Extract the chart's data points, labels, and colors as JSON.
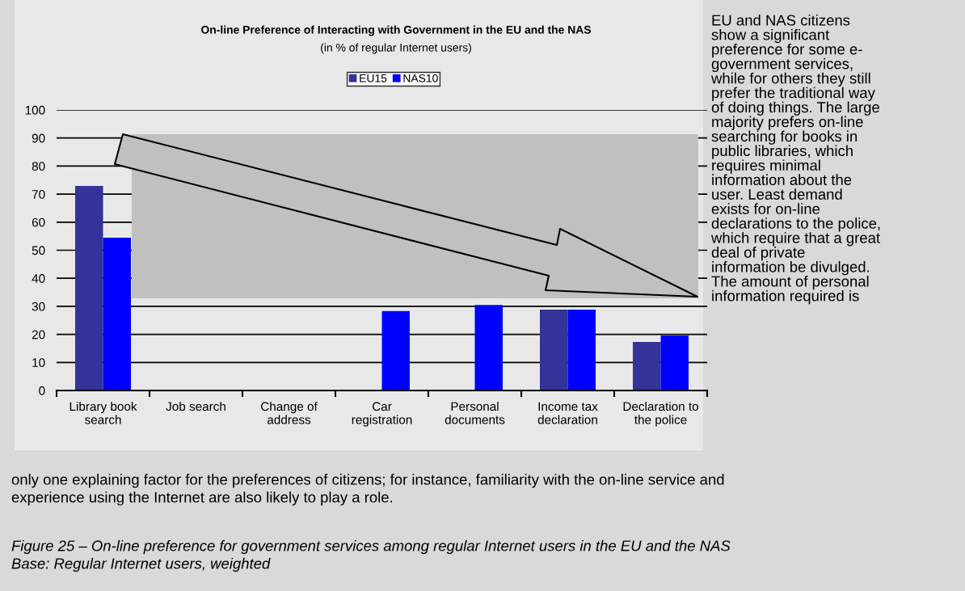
{
  "chart_data": {
    "type": "bar",
    "title": "On-line Preference of Interacting with Government in the EU and the NAS",
    "subtitle": "(in % of regular Internet users)",
    "categories": [
      "Library book\nsearch",
      "Job search",
      "Change of\naddress",
      "Car\nregistration",
      "Personal\ndocuments",
      "Income tax\ndeclaration",
      "Declaration to\nthe police"
    ],
    "series": [
      {
        "name": "EU15",
        "color": "#333399",
        "values": [
          72.9,
          null,
          null,
          null,
          null,
          28.8,
          17.3
        ]
      },
      {
        "name": "NAS10",
        "color": "#0000ff",
        "values": [
          54.5,
          null,
          null,
          28.3,
          30.5,
          28.8,
          19.6
        ]
      }
    ],
    "ylim": [
      0,
      100
    ],
    "yticks": [
      0,
      10,
      20,
      30,
      40,
      50,
      60,
      70,
      80,
      90,
      100
    ],
    "grid": "y",
    "legend": "top",
    "annotations": [
      "EU and NAS citizens\nshow a significant\npreference for some e-\ngovernment services,\nwhile for others they still\nprefer the traditional way\nof doing things. The large\nmajority prefers on-line\nsearching for books in\npublic libraries, which\nrequires minimal\ninformation about the\nuser. Least demand\nexists for on-line\ndeclarations to the police,\nwhich require that a great\ndeal of private\ninformation be divulged.\nThe amount of personal\ninformation required is",
      "only one explaining factor for the preferences of citizens; for instance, familiarity with the on-line service and\nexperience using the Internet are also likely to play a role.",
      "Figure 25 – On-line preference for government services among regular Internet users in the EU and the NAS\nBase: Regular Internet users, weighted"
    ]
  }
}
